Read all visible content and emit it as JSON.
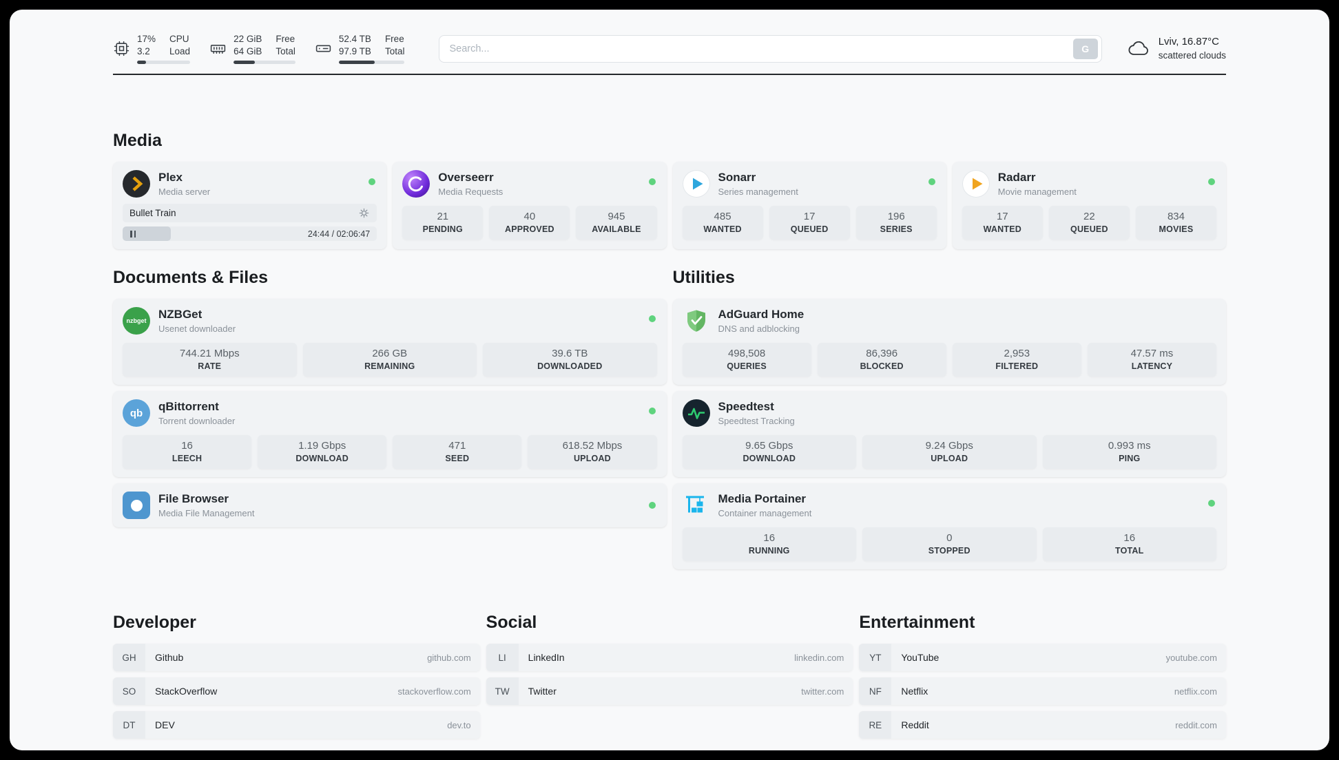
{
  "header": {
    "cpu": {
      "value": "17%",
      "sub": "3.2",
      "label1": "CPU",
      "label2": "Load",
      "progress": 17
    },
    "ram": {
      "value": "22 GiB",
      "sub": "64 GiB",
      "label1": "Free",
      "label2": "Total",
      "progress": 34
    },
    "disk": {
      "value": "52.4 TB",
      "sub": "97.9 TB",
      "label1": "Free",
      "label2": "Total",
      "progress": 54
    },
    "search": {
      "placeholder": "Search...",
      "button": "G"
    },
    "weather": {
      "location": "Lviv, 16.87°C",
      "condition": "scattered clouds"
    }
  },
  "media": {
    "title": "Media",
    "plex": {
      "name": "Plex",
      "subtitle": "Media server",
      "now_playing": {
        "title": "Bullet Train",
        "time": "24:44 / 02:06:47",
        "progress": 19
      }
    },
    "overseerr": {
      "name": "Overseerr",
      "subtitle": "Media Requests",
      "stats": [
        {
          "value": "21",
          "label": "PENDING"
        },
        {
          "value": "40",
          "label": "APPROVED"
        },
        {
          "value": "945",
          "label": "AVAILABLE"
        }
      ]
    },
    "sonarr": {
      "name": "Sonarr",
      "subtitle": "Series management",
      "stats": [
        {
          "value": "485",
          "label": "WANTED"
        },
        {
          "value": "17",
          "label": "QUEUED"
        },
        {
          "value": "196",
          "label": "SERIES"
        }
      ]
    },
    "radarr": {
      "name": "Radarr",
      "subtitle": "Movie management",
      "stats": [
        {
          "value": "17",
          "label": "WANTED"
        },
        {
          "value": "22",
          "label": "QUEUED"
        },
        {
          "value": "834",
          "label": "MOVIES"
        }
      ]
    }
  },
  "documents": {
    "title": "Documents & Files",
    "nzbget": {
      "name": "NZBGet",
      "subtitle": "Usenet downloader",
      "icon_text": "nzbget",
      "stats": [
        {
          "value": "744.21 Mbps",
          "label": "RATE"
        },
        {
          "value": "266 GB",
          "label": "REMAINING"
        },
        {
          "value": "39.6 TB",
          "label": "DOWNLOADED"
        }
      ]
    },
    "qbittorrent": {
      "name": "qBittorrent",
      "subtitle": "Torrent downloader",
      "icon_text": "qb",
      "stats": [
        {
          "value": "16",
          "label": "LEECH"
        },
        {
          "value": "1.19 Gbps",
          "label": "DOWNLOAD"
        },
        {
          "value": "471",
          "label": "SEED"
        },
        {
          "value": "618.52 Mbps",
          "label": "UPLOAD"
        }
      ]
    },
    "filebrowser": {
      "name": "File Browser",
      "subtitle": "Media File Management"
    }
  },
  "utilities": {
    "title": "Utilities",
    "adguard": {
      "name": "AdGuard Home",
      "subtitle": "DNS and adblocking",
      "stats": [
        {
          "value": "498,508",
          "label": "QUERIES"
        },
        {
          "value": "86,396",
          "label": "BLOCKED"
        },
        {
          "value": "2,953",
          "label": "FILTERED"
        },
        {
          "value": "47.57 ms",
          "label": "LATENCY"
        }
      ]
    },
    "speedtest": {
      "name": "Speedtest",
      "subtitle": "Speedtest Tracking",
      "stats": [
        {
          "value": "9.65 Gbps",
          "label": "DOWNLOAD"
        },
        {
          "value": "9.24 Gbps",
          "label": "UPLOAD"
        },
        {
          "value": "0.993 ms",
          "label": "PING"
        }
      ]
    },
    "portainer": {
      "name": "Media Portainer",
      "subtitle": "Container management",
      "stats": [
        {
          "value": "16",
          "label": "RUNNING"
        },
        {
          "value": "0",
          "label": "STOPPED"
        },
        {
          "value": "16",
          "label": "TOTAL"
        }
      ]
    }
  },
  "bookmarks": {
    "developer": {
      "title": "Developer",
      "items": [
        {
          "abbr": "GH",
          "name": "Github",
          "url": "github.com"
        },
        {
          "abbr": "SO",
          "name": "StackOverflow",
          "url": "stackoverflow.com"
        },
        {
          "abbr": "DT",
          "name": "DEV",
          "url": "dev.to"
        }
      ]
    },
    "social": {
      "title": "Social",
      "items": [
        {
          "abbr": "LI",
          "name": "LinkedIn",
          "url": "linkedin.com"
        },
        {
          "abbr": "TW",
          "name": "Twitter",
          "url": "twitter.com"
        }
      ]
    },
    "entertainment": {
      "title": "Entertainment",
      "items": [
        {
          "abbr": "YT",
          "name": "YouTube",
          "url": "youtube.com"
        },
        {
          "abbr": "NF",
          "name": "Netflix",
          "url": "netflix.com"
        },
        {
          "abbr": "RE",
          "name": "Reddit",
          "url": "reddit.com"
        }
      ]
    }
  },
  "colors": {
    "status_green": "#5fd37e",
    "bar_fill": "#3b4147",
    "plex_amber": "#e5a00d",
    "overseerr_purple_1": "#c084fc",
    "overseerr_purple_2": "#6d28d9",
    "sonarr_blue": "#2ea6dd",
    "radarr_amber": "#f0a41f",
    "nzbget_green": "#3aa14a",
    "qbittorrent_blue": "#5ba3d9",
    "filebrowser_blue": "#4e96cf",
    "adguard_green": "#63b663",
    "speedtest_green": "#2ecc71",
    "portainer_blue": "#1ab5ec"
  }
}
